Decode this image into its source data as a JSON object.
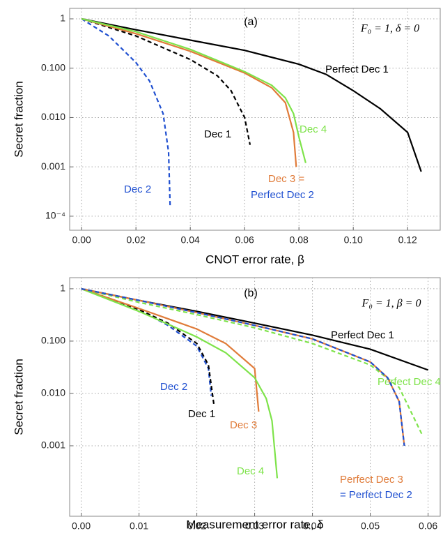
{
  "chart_data": [
    {
      "type": "line",
      "title": "(a)",
      "subtitle": "F₀ = 1, δ = 0",
      "x_label": "CNOT error rate,  β",
      "y_label": "Secret fraction",
      "log_y": true,
      "grid": true,
      "xlim": [
        -0.0044,
        0.132
      ],
      "ylim": [
        5.2e-05,
        1.63
      ],
      "xticks": [
        {
          "value": 0,
          "label": "0.00"
        },
        0.02,
        0.04,
        0.06,
        0.08,
        {
          "value": 0.1,
          "label": "0.10"
        },
        0.12
      ],
      "yticks": [
        1,
        {
          "value": 0.1,
          "label": "0.100"
        },
        {
          "value": 0.01,
          "label": "0.010"
        },
        0.001,
        {
          "value": 0.0001,
          "label": "10⁻⁴"
        }
      ],
      "series": [
        {
          "name": "Perfect Dec 1",
          "color": "#000000",
          "dashed": false,
          "x": [
            0,
            0.02,
            0.04,
            0.06,
            0.08,
            0.09,
            0.1,
            0.11,
            0.12,
            0.125
          ],
          "values": [
            1,
            0.6,
            0.37,
            0.23,
            0.12,
            0.075,
            0.035,
            0.015,
            0.005,
            0.0008
          ]
        },
        {
          "name": "Dec 1",
          "color": "#000000",
          "dashed": true,
          "x": [
            0,
            0.02,
            0.04,
            0.05,
            0.055,
            0.06,
            0.062
          ],
          "values": [
            1,
            0.45,
            0.15,
            0.07,
            0.035,
            0.01,
            0.0028
          ]
        },
        {
          "name": "Dec 2",
          "color": "#1f4fd0",
          "dashed": true,
          "x": [
            0,
            0.01,
            0.02,
            0.025,
            0.03,
            0.032,
            0.0326
          ],
          "values": [
            1,
            0.45,
            0.13,
            0.055,
            0.012,
            0.002,
            0.00015
          ]
        },
        {
          "name": "Dec 3 =",
          "color": "#e07b39",
          "dashed": false,
          "x": [
            0,
            0.02,
            0.04,
            0.06,
            0.07,
            0.075,
            0.078,
            0.079
          ],
          "values": [
            1,
            0.5,
            0.22,
            0.08,
            0.04,
            0.02,
            0.005,
            0.001
          ]
        },
        {
          "name": "Dec 4",
          "color": "#7ee34a",
          "dashed": false,
          "x": [
            0,
            0.02,
            0.04,
            0.06,
            0.07,
            0.075,
            0.078,
            0.08,
            0.0825
          ],
          "values": [
            1,
            0.55,
            0.24,
            0.085,
            0.045,
            0.025,
            0.012,
            0.004,
            0.0012
          ]
        }
      ],
      "annotations": [
        {
          "text": "Perfect Dec 2",
          "color": "#1f4fd0"
        }
      ]
    },
    {
      "type": "line",
      "title": "(b)",
      "subtitle": "F₀ = 1, β = 0",
      "x_label": "Measurement error rate, δ",
      "y_label": "Secret fraction",
      "log_y": true,
      "grid": true,
      "xlim": [
        -0.002,
        0.0621
      ],
      "ylim": [
        4.5e-05,
        1.63
      ],
      "xticks": [
        {
          "value": 0,
          "label": "0.00"
        },
        0.01,
        0.02,
        0.03,
        0.04,
        0.05,
        0.06
      ],
      "yticks": [
        1,
        {
          "value": 0.1,
          "label": "0.100"
        },
        {
          "value": 0.01,
          "label": "0.010"
        },
        0.001
      ],
      "series": [
        {
          "name": "Perfect Dec 1",
          "color": "#000000",
          "dashed": false,
          "x": [
            0,
            0.01,
            0.02,
            0.03,
            0.04,
            0.05,
            0.06
          ],
          "values": [
            1,
            0.6,
            0.37,
            0.22,
            0.13,
            0.07,
            0.028
          ]
        },
        {
          "name": "Dec 2",
          "color": "#1f4fd0",
          "dashed": true,
          "x": [
            0,
            0.01,
            0.015,
            0.02,
            0.022,
            0.0225
          ],
          "values": [
            1,
            0.4,
            0.2,
            0.08,
            0.03,
            0.009
          ]
        },
        {
          "name": "Dec 1",
          "color": "#000000",
          "dashed": true,
          "x": [
            0,
            0.005,
            0.01,
            0.015,
            0.02,
            0.022,
            0.023
          ],
          "values": [
            1,
            0.65,
            0.4,
            0.22,
            0.09,
            0.035,
            0.0056
          ]
        },
        {
          "name": "Dec 3",
          "color": "#e07b39",
          "dashed": false,
          "x": [
            0,
            0.01,
            0.02,
            0.025,
            0.03,
            0.0307
          ],
          "values": [
            1,
            0.42,
            0.17,
            0.09,
            0.03,
            0.0045
          ]
        },
        {
          "name": "Dec 4",
          "color": "#7ee34a",
          "dashed": false,
          "x": [
            0,
            0.01,
            0.02,
            0.025,
            0.03,
            0.032,
            0.033,
            0.0339
          ],
          "values": [
            1,
            0.37,
            0.12,
            0.06,
            0.02,
            0.008,
            0.003,
            0.00024
          ]
        },
        {
          "name": "Perfect Dec 4",
          "color": "#7ee34a",
          "dashed": true,
          "x": [
            0,
            0.01,
            0.02,
            0.03,
            0.04,
            0.05,
            0.055,
            0.059
          ],
          "values": [
            1,
            0.55,
            0.32,
            0.18,
            0.09,
            0.035,
            0.013,
            0.0016
          ]
        },
        {
          "name": "Perfect Dec 3",
          "color": "#e07b39",
          "dashed": false,
          "x": [
            0,
            0.01,
            0.02,
            0.03,
            0.04,
            0.05,
            0.053,
            0.055,
            0.0559
          ],
          "values": [
            1,
            0.6,
            0.35,
            0.2,
            0.11,
            0.04,
            0.02,
            0.007,
            0.001
          ]
        },
        {
          "name": "= Perfect Dec 2",
          "color": "#1f4fd0",
          "dashed": true,
          "x": [
            0,
            0.01,
            0.02,
            0.03,
            0.04,
            0.05,
            0.053,
            0.055,
            0.0559
          ],
          "values": [
            1,
            0.6,
            0.35,
            0.2,
            0.11,
            0.04,
            0.02,
            0.007,
            0.001
          ]
        }
      ],
      "annotations": []
    }
  ]
}
